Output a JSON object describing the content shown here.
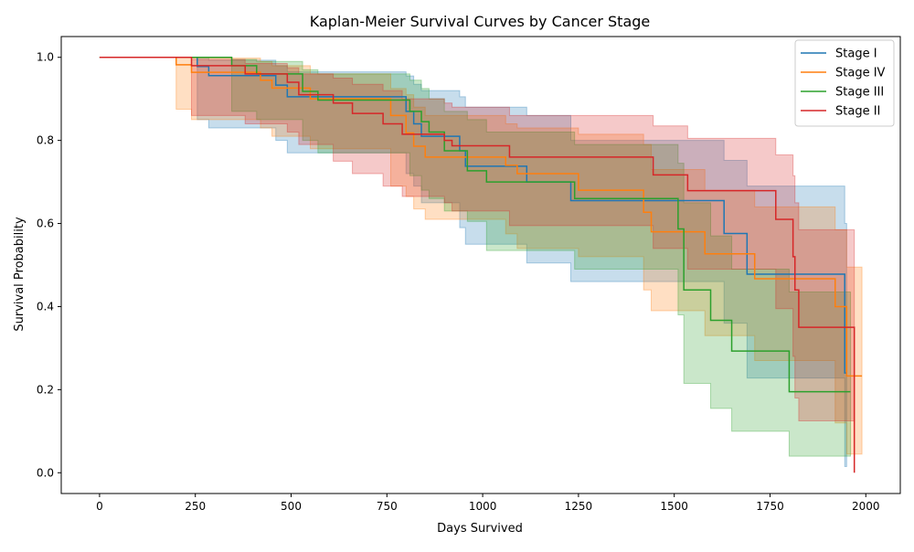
{
  "chart_data": {
    "type": "line",
    "title": "Kaplan-Meier Survival Curves by Cancer Stage",
    "xlabel": "Days Survived",
    "ylabel": "Survival Probability",
    "xlim": [
      -100,
      2090
    ],
    "ylim": [
      -0.05,
      1.05
    ],
    "xticks": [
      0,
      250,
      500,
      750,
      1000,
      1250,
      1500,
      1750,
      2000
    ],
    "yticks": [
      0.0,
      0.2,
      0.4,
      0.6,
      0.8,
      1.0
    ],
    "xtick_labels": [
      "0",
      "250",
      "500",
      "750",
      "1000",
      "1250",
      "1500",
      "1750",
      "2000"
    ],
    "ytick_labels": [
      "0.0",
      "0.2",
      "0.4",
      "0.6",
      "0.8",
      "1.0"
    ],
    "grid": false,
    "legend_position": "top-right",
    "step": true,
    "confidence_bands": true,
    "series": [
      {
        "name": "Stage I",
        "color": "#1f77b4",
        "x": [
          0,
          255,
          285,
          460,
          490,
          800,
          820,
          840,
          940,
          955,
          1115,
          1230,
          1630,
          1690,
          1945,
          1950
        ],
        "y": [
          1.0,
          0.978,
          0.956,
          0.933,
          0.905,
          0.87,
          0.84,
          0.81,
          0.775,
          0.738,
          0.7,
          0.655,
          0.576,
          0.478,
          0.24,
          0.24
        ],
        "ci_lower": [
          1.0,
          0.85,
          0.83,
          0.8,
          0.77,
          0.72,
          0.69,
          0.65,
          0.59,
          0.55,
          0.505,
          0.46,
          0.36,
          0.228,
          0.015,
          0.015
        ],
        "ci_upper": [
          1.0,
          1.0,
          0.993,
          0.98,
          0.965,
          0.955,
          0.935,
          0.92,
          0.905,
          0.88,
          0.86,
          0.8,
          0.752,
          0.69,
          0.6,
          0.6
        ]
      },
      {
        "name": "Stage IV",
        "color": "#ff7f0e",
        "x": [
          0,
          200,
          240,
          420,
          450,
          550,
          760,
          800,
          820,
          850,
          1060,
          1090,
          1250,
          1420,
          1440,
          1580,
          1710,
          1920,
          1950,
          1990
        ],
        "y": [
          1.0,
          0.982,
          0.964,
          0.945,
          0.926,
          0.9,
          0.86,
          0.818,
          0.786,
          0.76,
          0.74,
          0.72,
          0.68,
          0.627,
          0.58,
          0.527,
          0.467,
          0.4,
          0.233,
          0.233
        ],
        "ci_lower": [
          1.0,
          0.875,
          0.85,
          0.83,
          0.81,
          0.78,
          0.69,
          0.665,
          0.635,
          0.61,
          0.575,
          0.54,
          0.52,
          0.44,
          0.39,
          0.33,
          0.27,
          0.12,
          0.045,
          0.045
        ],
        "ci_upper": [
          1.0,
          1.0,
          0.998,
          0.99,
          0.98,
          0.96,
          0.925,
          0.91,
          0.88,
          0.86,
          0.84,
          0.83,
          0.815,
          0.79,
          0.73,
          0.68,
          0.64,
          0.585,
          0.495,
          0.495
        ]
      },
      {
        "name": "Stage III",
        "color": "#2ca02c",
        "x": [
          0,
          345,
          410,
          530,
          570,
          810,
          840,
          860,
          900,
          960,
          1010,
          1240,
          1510,
          1525,
          1595,
          1650,
          1800,
          1960
        ],
        "y": [
          1.0,
          0.98,
          0.96,
          0.918,
          0.897,
          0.87,
          0.845,
          0.82,
          0.775,
          0.727,
          0.7,
          0.66,
          0.587,
          0.44,
          0.367,
          0.293,
          0.195,
          0.195
        ],
        "ci_lower": [
          1.0,
          0.87,
          0.85,
          0.8,
          0.77,
          0.715,
          0.68,
          0.66,
          0.63,
          0.605,
          0.535,
          0.49,
          0.38,
          0.215,
          0.155,
          0.1,
          0.04,
          0.04
        ],
        "ci_upper": [
          1.0,
          0.995,
          0.99,
          0.97,
          0.96,
          0.945,
          0.925,
          0.9,
          0.87,
          0.85,
          0.82,
          0.79,
          0.745,
          0.65,
          0.57,
          0.49,
          0.435,
          0.435
        ]
      },
      {
        "name": "Stage II",
        "color": "#d62728",
        "x": [
          0,
          240,
          380,
          490,
          520,
          610,
          660,
          740,
          790,
          900,
          920,
          1070,
          1445,
          1535,
          1765,
          1810,
          1815,
          1825,
          1970,
          1970
        ],
        "y": [
          1.0,
          0.98,
          0.96,
          0.94,
          0.91,
          0.89,
          0.865,
          0.84,
          0.815,
          0.8,
          0.787,
          0.76,
          0.717,
          0.679,
          0.61,
          0.52,
          0.44,
          0.35,
          0.35,
          0.0
        ],
        "ci_lower": [
          1.0,
          0.86,
          0.84,
          0.82,
          0.79,
          0.75,
          0.72,
          0.69,
          0.665,
          0.65,
          0.63,
          0.595,
          0.54,
          0.49,
          0.395,
          0.28,
          0.18,
          0.125,
          0.125,
          0.125
        ],
        "ci_upper": [
          1.0,
          0.995,
          0.985,
          0.975,
          0.96,
          0.95,
          0.935,
          0.92,
          0.9,
          0.89,
          0.88,
          0.86,
          0.835,
          0.805,
          0.765,
          0.715,
          0.65,
          0.585,
          0.585,
          0.585
        ]
      }
    ]
  }
}
